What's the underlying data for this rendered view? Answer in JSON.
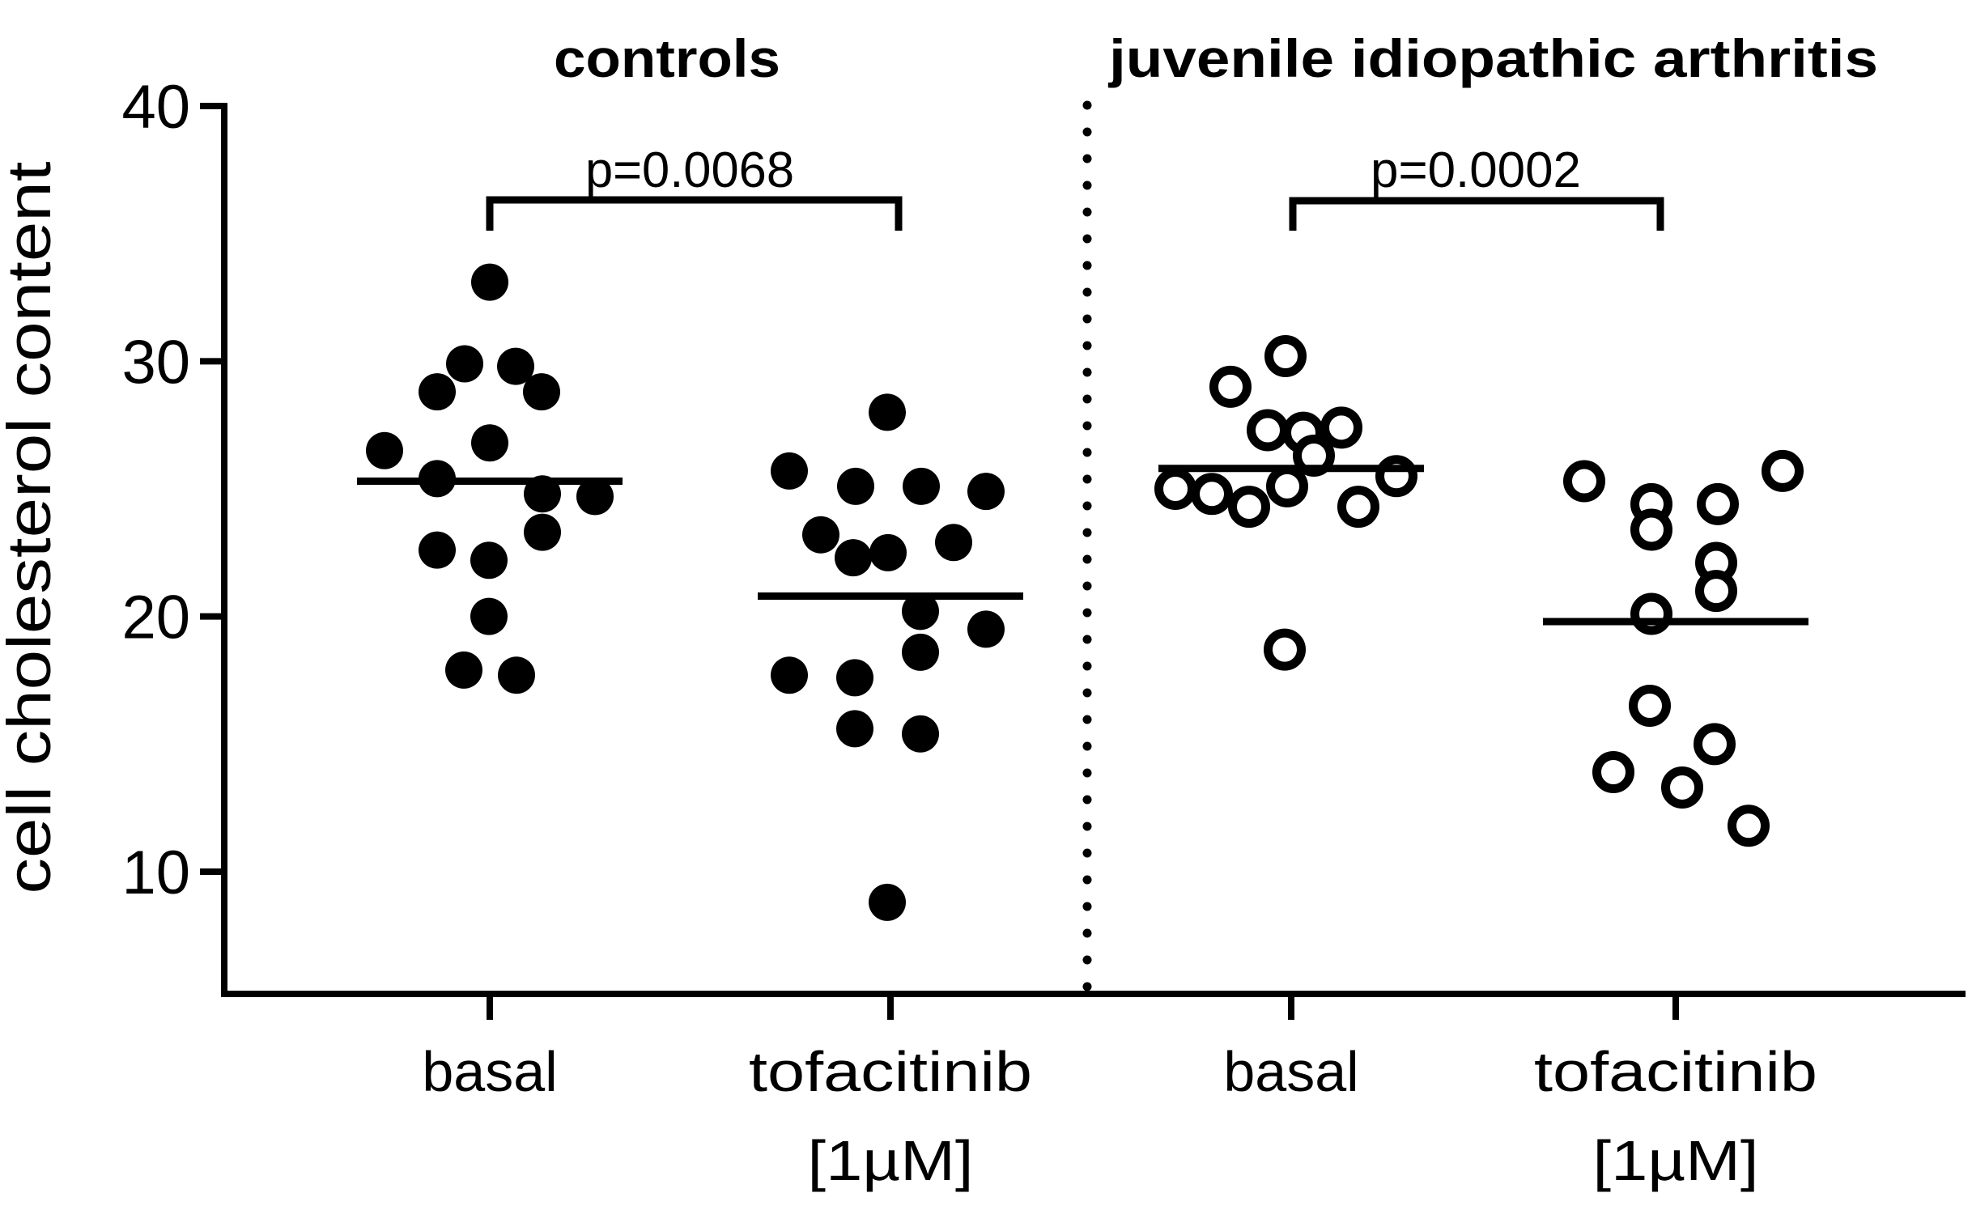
{
  "figure": {
    "background": "#ffffff",
    "ink": "#000000"
  },
  "chart_data": {
    "type": "scatter",
    "ylabel": "cell cholesterol content",
    "yticks": [
      40,
      30,
      20,
      10
    ],
    "ylim": [
      4.7,
      40.5
    ],
    "grid": false,
    "panels": [
      {
        "title": "controls",
        "marker": "filled-circle"
      },
      {
        "title": "juvenile idiopathic arthritis",
        "marker": "open-circle"
      }
    ],
    "columns": [
      {
        "panel": "controls",
        "label": "basal",
        "sublabel": "",
        "marker": "filled",
        "mean_line": 25.3,
        "points": [
          {
            "v": 33.1,
            "dx": 0
          },
          {
            "v": 29.9,
            "dx": -31
          },
          {
            "v": 29.8,
            "dx": 32
          },
          {
            "v": 28.8,
            "dx": -65
          },
          {
            "v": 28.8,
            "dx": 64
          },
          {
            "v": 26.8,
            "dx": 0
          },
          {
            "v": 26.5,
            "dx": -130
          },
          {
            "v": 25.4,
            "dx": -65
          },
          {
            "v": 24.8,
            "dx": 65
          },
          {
            "v": 24.7,
            "dx": 130
          },
          {
            "v": 23.3,
            "dx": 65
          },
          {
            "v": 22.6,
            "dx": -65
          },
          {
            "v": 22.2,
            "dx": -1
          },
          {
            "v": 20.0,
            "dx": -1
          },
          {
            "v": 17.9,
            "dx": -32
          },
          {
            "v": 17.7,
            "dx": 33
          }
        ]
      },
      {
        "panel": "controls",
        "label": "tofacitinib",
        "sublabel": "[1µM]",
        "marker": "filled",
        "mean_line": 20.8,
        "points": [
          {
            "v": 28.0,
            "dx": -4
          },
          {
            "v": 25.7,
            "dx": -125
          },
          {
            "v": 25.1,
            "dx": -43
          },
          {
            "v": 25.1,
            "dx": 38
          },
          {
            "v": 24.9,
            "dx": 118
          },
          {
            "v": 23.2,
            "dx": -86
          },
          {
            "v": 22.9,
            "dx": 78
          },
          {
            "v": 22.5,
            "dx": -3
          },
          {
            "v": 22.3,
            "dx": -46
          },
          {
            "v": 20.2,
            "dx": 37
          },
          {
            "v": 19.5,
            "dx": 118
          },
          {
            "v": 18.6,
            "dx": 37
          },
          {
            "v": 17.7,
            "dx": -125
          },
          {
            "v": 17.6,
            "dx": -44
          },
          {
            "v": 15.6,
            "dx": -44
          },
          {
            "v": 15.4,
            "dx": 37
          },
          {
            "v": 8.8,
            "dx": -4
          }
        ]
      },
      {
        "panel": "juvenile idiopathic arthritis",
        "label": "basal",
        "sublabel": "",
        "marker": "open",
        "mean_line": 25.8,
        "points": [
          {
            "v": 30.2,
            "dx": -7
          },
          {
            "v": 29.0,
            "dx": -75
          },
          {
            "v": 27.4,
            "dx": 62
          },
          {
            "v": 27.3,
            "dx": -29
          },
          {
            "v": 27.2,
            "dx": 15
          },
          {
            "v": 26.3,
            "dx": 28
          },
          {
            "v": 25.5,
            "dx": 130
          },
          {
            "v": 25.1,
            "dx": -5
          },
          {
            "v": 25.0,
            "dx": -143
          },
          {
            "v": 24.8,
            "dx": -98
          },
          {
            "v": 24.3,
            "dx": -52
          },
          {
            "v": 24.3,
            "dx": 83
          },
          {
            "v": 18.7,
            "dx": -8
          }
        ]
      },
      {
        "panel": "juvenile idiopathic arthritis",
        "label": "tofacitinib",
        "sublabel": "[1µM]",
        "marker": "open",
        "mean_line": 19.8,
        "points": [
          {
            "v": 25.7,
            "dx": 132
          },
          {
            "v": 25.3,
            "dx": -113
          },
          {
            "v": 24.4,
            "dx": -30
          },
          {
            "v": 24.4,
            "dx": 52
          },
          {
            "v": 23.4,
            "dx": -30
          },
          {
            "v": 22.1,
            "dx": 50
          },
          {
            "v": 21.0,
            "dx": 50
          },
          {
            "v": 20.1,
            "dx": -30
          },
          {
            "v": 16.5,
            "dx": -32
          },
          {
            "v": 15.0,
            "dx": 48
          },
          {
            "v": 13.9,
            "dx": -77
          },
          {
            "v": 13.3,
            "dx": 8
          },
          {
            "v": 11.8,
            "dx": 90
          }
        ]
      }
    ],
    "comparisons": [
      {
        "label": "p=0.0068",
        "between": [
          "controls basal",
          "controls tofacitinib [1µM]"
        ]
      },
      {
        "label": "p=0.0002",
        "between": [
          "juvenile idiopathic arthritis basal",
          "juvenile idiopathic arthritis tofacitinib [1µM]"
        ]
      }
    ]
  }
}
